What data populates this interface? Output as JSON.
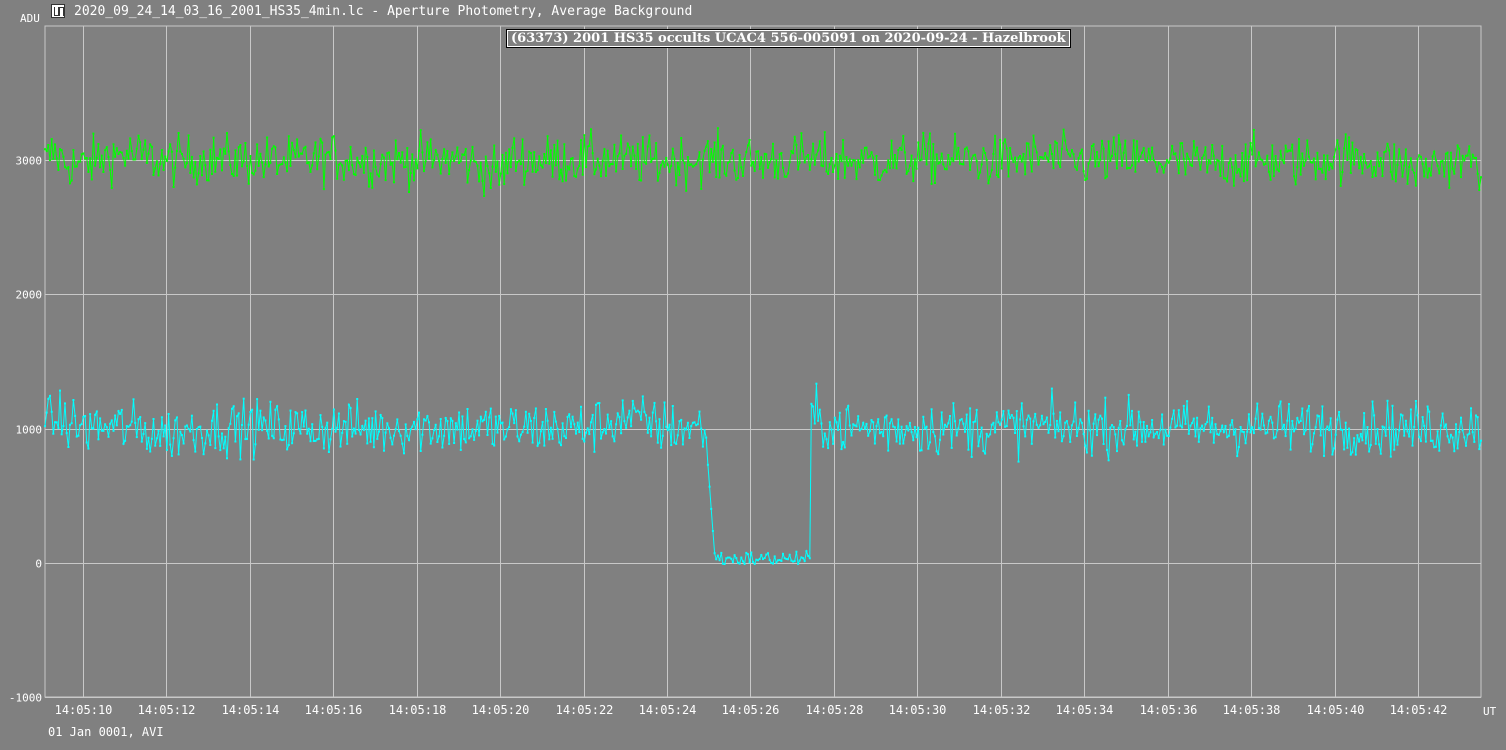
{
  "window": {
    "title": "2020_09_24_14_03_16_2001_HS35_4min.lc - Aperture Photometry, Average Background"
  },
  "footer": {
    "text": "01 Jan 0001, AVI"
  },
  "colors": {
    "background": "#808080",
    "grid": "#c8c8c8",
    "target": "#00ffff",
    "comparison": "#00ff00",
    "text": "#ffffff"
  },
  "chart_data": {
    "type": "line",
    "title": "(63373) 2001 HS35 occults UCAC4 556-005091 on 2020-09-24 - Hazelbrook",
    "ylabel": "ADU",
    "xlabel": "UT",
    "ylim": [
      -1000,
      4000
    ],
    "xlim_seconds": [
      9.1,
      43.5
    ],
    "y_ticks": [
      -1000,
      0,
      1000,
      2000,
      3000
    ],
    "x_ticks": [
      "14:05:10",
      "14:05:12",
      "14:05:14",
      "14:05:16",
      "14:05:18",
      "14:05:20",
      "14:05:22",
      "14:05:24",
      "14:05:26",
      "14:05:28",
      "14:05:30",
      "14:05:32",
      "14:05:34",
      "14:05:36",
      "14:05:38",
      "14:05:40",
      "14:05:42"
    ],
    "x_tick_seconds": [
      10,
      12,
      14,
      16,
      18,
      20,
      22,
      24,
      26,
      28,
      30,
      32,
      34,
      36,
      38,
      40,
      42
    ],
    "grid": true,
    "frame_interval_s": 0.04,
    "series": [
      {
        "role": "comparison",
        "baseline": 3000,
        "noise_amplitude": 130,
        "description_points": [
          [
            9.1,
            2950
          ],
          [
            9.3,
            3300
          ],
          [
            9.6,
            2900
          ],
          [
            10.0,
            2800
          ],
          [
            10.5,
            3100
          ],
          [
            11.0,
            3250
          ],
          [
            11.4,
            3150
          ],
          [
            12.0,
            2950
          ],
          [
            13.0,
            3050
          ],
          [
            14.0,
            3000
          ],
          [
            15.0,
            2950
          ],
          [
            16.0,
            3100
          ],
          [
            17.0,
            2950
          ],
          [
            18.0,
            3000
          ],
          [
            19.0,
            3050
          ],
          [
            20.0,
            2500
          ],
          [
            20.3,
            3100
          ],
          [
            21.0,
            3000
          ],
          [
            22.0,
            3050
          ],
          [
            23.0,
            3000
          ],
          [
            24.0,
            2950
          ],
          [
            25.0,
            3050
          ],
          [
            26.0,
            2950
          ],
          [
            27.0,
            3050
          ],
          [
            28.0,
            3000
          ],
          [
            29.0,
            2950
          ],
          [
            30.0,
            3050
          ],
          [
            31.0,
            3000
          ],
          [
            32.0,
            2950
          ],
          [
            33.0,
            3100
          ],
          [
            34.0,
            2950
          ],
          [
            35.0,
            3050
          ],
          [
            36.0,
            2950
          ],
          [
            37.0,
            2850
          ],
          [
            38.0,
            3000
          ],
          [
            39.0,
            2950
          ],
          [
            40.0,
            3100
          ],
          [
            41.0,
            3050
          ],
          [
            42.0,
            2650
          ],
          [
            42.5,
            2900
          ],
          [
            43.5,
            2950
          ]
        ]
      },
      {
        "role": "target",
        "baseline": 1000,
        "noise_amplitude": 140,
        "event_start_s": 25.15,
        "event_end_s": 27.45,
        "event_level": 30,
        "description_points": [
          [
            9.1,
            1000
          ],
          [
            9.3,
            1500
          ],
          [
            10.0,
            1050
          ],
          [
            11.0,
            1100
          ],
          [
            12.0,
            700
          ],
          [
            13.0,
            1050
          ],
          [
            14.0,
            1100
          ],
          [
            15.0,
            1000
          ],
          [
            16.0,
            1050
          ],
          [
            17.0,
            1000
          ],
          [
            18.0,
            1100
          ],
          [
            19.0,
            1050
          ],
          [
            20.0,
            1000
          ],
          [
            21.0,
            1050
          ],
          [
            22.0,
            1000
          ],
          [
            23.0,
            1550
          ],
          [
            24.0,
            1050
          ],
          [
            24.9,
            1050
          ],
          [
            25.0,
            650
          ],
          [
            25.15,
            30
          ],
          [
            26.0,
            20
          ],
          [
            27.3,
            40
          ],
          [
            27.45,
            1700
          ],
          [
            28.0,
            1050
          ],
          [
            29.0,
            1000
          ],
          [
            30.0,
            1050
          ],
          [
            31.0,
            1000
          ],
          [
            32.0,
            1050
          ],
          [
            33.0,
            1100
          ],
          [
            34.0,
            1050
          ],
          [
            35.0,
            1100
          ],
          [
            36.0,
            1050
          ],
          [
            37.0,
            1000
          ],
          [
            38.0,
            1100
          ],
          [
            39.0,
            1050
          ],
          [
            40.0,
            1050
          ],
          [
            41.0,
            1050
          ],
          [
            42.0,
            1000
          ],
          [
            43.5,
            1100
          ]
        ]
      }
    ]
  }
}
